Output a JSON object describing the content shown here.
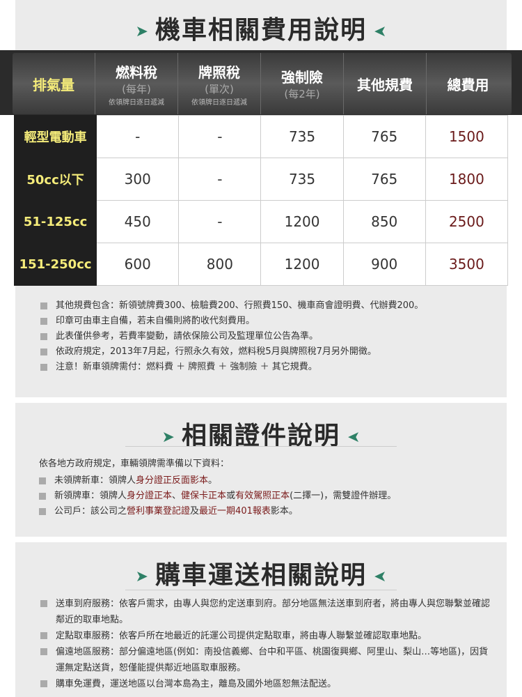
{
  "section1": {
    "title": "機車相關費用說明",
    "headers": [
      {
        "main": "排氣量"
      },
      {
        "main": "燃料稅",
        "sub": "(每年)",
        "note": "依領牌日逐日遞減"
      },
      {
        "main": "牌照稅",
        "sub": "(單次)",
        "note": "依領牌日逐日遞減"
      },
      {
        "main": "強制險",
        "sub": "(每2年)"
      },
      {
        "main": "其他規費"
      },
      {
        "main": "總費用"
      }
    ],
    "rows": [
      [
        "輕型電動車",
        "-",
        "-",
        "735",
        "765",
        "1500"
      ],
      [
        "50cc以下",
        "300",
        "-",
        "735",
        "765",
        "1800"
      ],
      [
        "51-125cc",
        "450",
        "-",
        "1200",
        "850",
        "2500"
      ],
      [
        "151-250cc",
        "600",
        "800",
        "1200",
        "900",
        "3500"
      ]
    ],
    "notes": [
      "其他規費包含：新領號牌費300、檢驗費200、行照費150、機車商會證明費、代辦費200。",
      "印章可由車主自備，若未自備則將酌收代刻費用。",
      "此表僅供參考，若費率變動，請依保險公司及監理單位公告為準。",
      "依政府規定，2013年7月起，行照永久有效，燃料稅5月與牌照稅7月另外開徵。",
      "注意！新車領牌需付：燃料費 ＋ 牌照費 ＋ 強制險 ＋ 其它規費。"
    ]
  },
  "section2": {
    "title": "相關證件說明",
    "intro": "依各地方政府規定，車輛領牌需準備以下資料：",
    "items": [
      [
        {
          "t": "未領牌新車：領牌人"
        },
        {
          "t": "身分證正反面影本",
          "red": true
        },
        {
          "t": "。"
        }
      ],
      [
        {
          "t": "新領牌車：領牌人"
        },
        {
          "t": "身分證正本",
          "red": true
        },
        {
          "t": "、"
        },
        {
          "t": "健保卡正本",
          "red": true
        },
        {
          "t": "或"
        },
        {
          "t": "有效駕照正本",
          "red": true
        },
        {
          "t": "(二擇一)，需雙證件辦理。"
        }
      ],
      [
        {
          "t": "公司戶：該公司之"
        },
        {
          "t": "營利事業登記證",
          "red": true
        },
        {
          "t": "及"
        },
        {
          "t": "最近一期401報表",
          "red": true
        },
        {
          "t": "影本。"
        }
      ]
    ]
  },
  "section3": {
    "title": "購車運送相關說明",
    "items": [
      "送車到府服務：依客戶需求，由專人與您約定送車到府。部分地區無法送車到府者，將由專人與您聯繫並確認鄰近的取車地點。",
      "定點取車服務：依客戶所在地最近的託運公司提供定點取車，將由專人聯繫並確認取車地點。",
      "偏遠地區服務：部分偏遠地區(例如：南投信義鄉、台中和平區、桃園復興鄉、阿里山、梨山…等地區)，因貨運無定點送貨，恕僅能提供鄰近地區取車服務。",
      "購車免運費，運送地區以台灣本島為主，離島及國外地區恕無法配送。"
    ]
  },
  "colors": {
    "accent": "#2e8066",
    "label_yellow": "#f5ec7a",
    "total_red": "#6a1a1a"
  }
}
